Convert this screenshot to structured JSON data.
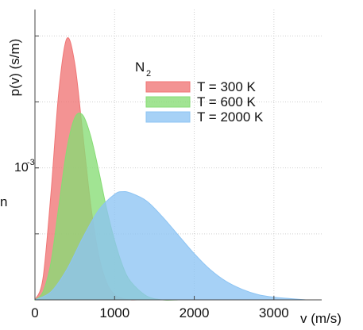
{
  "chart_data": {
    "type": "area",
    "xlabel": "v (m/s)",
    "ylabel": "p(v) (s/m)",
    "x_ticks": [
      "0",
      "1000",
      "2000",
      "3000"
    ],
    "xlim": [
      0,
      3600
    ],
    "ytick": {
      "base": "10",
      "exponent": "-3",
      "value": 0.001
    },
    "ylim": [
      0,
      0.0022
    ],
    "grid": true,
    "legend": {
      "title_base": "N",
      "title_sub": "2",
      "placement": "top-right"
    },
    "series": [
      {
        "name": "T = 300 K",
        "temperature_K": 300,
        "color": "#f07575",
        "x": [
          0,
          100,
          200,
          300,
          400,
          500,
          600,
          700,
          800,
          900,
          1000,
          1100,
          1200,
          1300
        ],
        "y": [
          0,
          0.00016,
          0.0008,
          0.00158,
          0.00198,
          0.00179,
          0.00126,
          0.00072,
          0.00034,
          0.00013,
          4e-05,
          1e-05,
          0.0,
          0
        ]
      },
      {
        "name": "T = 600 K",
        "temperature_K": 600,
        "color": "#86dc74",
        "x": [
          0,
          100,
          200,
          300,
          400,
          500,
          600,
          700,
          800,
          900,
          1000,
          1100,
          1200,
          1400,
          1600,
          1800
        ],
        "y": [
          0,
          6e-05,
          0.00028,
          0.00071,
          0.00114,
          0.00138,
          0.0014,
          0.00124,
          0.00098,
          0.00069,
          0.00045,
          0.00026,
          0.00014,
          3e-05,
          0.0,
          0
        ]
      },
      {
        "name": "T = 2000 K",
        "temperature_K": 2000,
        "color": "#8dc4f3",
        "x": [
          0,
          200,
          400,
          600,
          800,
          1000,
          1100,
          1200,
          1400,
          1600,
          1800,
          2000,
          2200,
          2400,
          2600,
          2800,
          3000,
          3200,
          3400
        ],
        "y": [
          0,
          6e-05,
          0.00023,
          0.00047,
          0.00068,
          0.0008,
          0.00082,
          0.00081,
          0.00075,
          0.00063,
          0.00049,
          0.00035,
          0.00023,
          0.00014,
          8e-05,
          4e-05,
          2e-05,
          1e-05,
          0
        ]
      }
    ],
    "stray_glyph": "n"
  }
}
